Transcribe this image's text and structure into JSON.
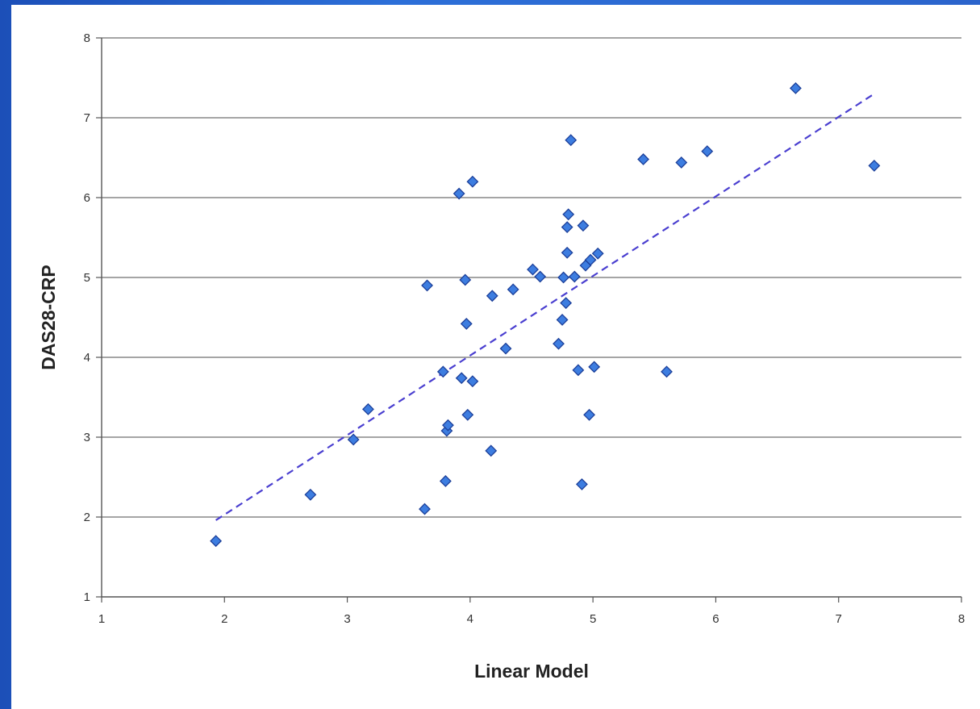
{
  "chart_data": {
    "type": "scatter",
    "title": "",
    "xlabel": "Linear Model",
    "ylabel": "DAS28-CRP",
    "xlim": [
      1,
      8
    ],
    "ylim": [
      1,
      8
    ],
    "x_ticks": [
      "1",
      "2",
      "3",
      "4",
      "5",
      "6",
      "7",
      "8"
    ],
    "y_ticks": [
      "1",
      "2",
      "3",
      "4",
      "5",
      "6",
      "7",
      "8"
    ],
    "grid": "horizontal",
    "legend": "none",
    "marker": "diamond",
    "colors": {
      "marker_fill": "#3d7de0",
      "marker_stroke": "#1c3f99",
      "trendline": "#4a3fd0"
    },
    "series": [
      {
        "points": [
          [
            1.93,
            1.7
          ],
          [
            2.7,
            2.28
          ],
          [
            3.05,
            2.97
          ],
          [
            3.17,
            3.35
          ],
          [
            3.63,
            2.1
          ],
          [
            3.65,
            4.9
          ],
          [
            3.78,
            3.82
          ],
          [
            3.8,
            2.45
          ],
          [
            3.81,
            3.08
          ],
          [
            3.82,
            3.15
          ],
          [
            3.91,
            6.05
          ],
          [
            3.93,
            3.74
          ],
          [
            3.96,
            4.97
          ],
          [
            3.97,
            4.42
          ],
          [
            3.98,
            3.28
          ],
          [
            4.02,
            3.7
          ],
          [
            4.02,
            6.2
          ],
          [
            4.17,
            2.83
          ],
          [
            4.18,
            4.77
          ],
          [
            4.29,
            4.11
          ],
          [
            4.35,
            4.85
          ],
          [
            4.51,
            5.1
          ],
          [
            4.57,
            5.01
          ],
          [
            4.72,
            4.17
          ],
          [
            4.75,
            4.47
          ],
          [
            4.76,
            5.0
          ],
          [
            4.78,
            4.68
          ],
          [
            4.79,
            5.31
          ],
          [
            4.79,
            5.63
          ],
          [
            4.8,
            5.79
          ],
          [
            4.82,
            6.72
          ],
          [
            4.85,
            5.01
          ],
          [
            4.88,
            3.84
          ],
          [
            4.91,
            2.41
          ],
          [
            4.92,
            5.65
          ],
          [
            4.94,
            5.15
          ],
          [
            4.97,
            3.28
          ],
          [
            4.98,
            5.22
          ],
          [
            5.01,
            3.88
          ],
          [
            5.04,
            5.3
          ],
          [
            5.41,
            6.48
          ],
          [
            5.6,
            3.82
          ],
          [
            5.72,
            6.44
          ],
          [
            5.93,
            6.58
          ],
          [
            6.65,
            7.37
          ],
          [
            7.29,
            6.4
          ]
        ]
      }
    ],
    "trendline": {
      "style": "dashed",
      "x": [
        1.93,
        7.29
      ],
      "y": [
        1.96,
        7.3
      ]
    }
  }
}
